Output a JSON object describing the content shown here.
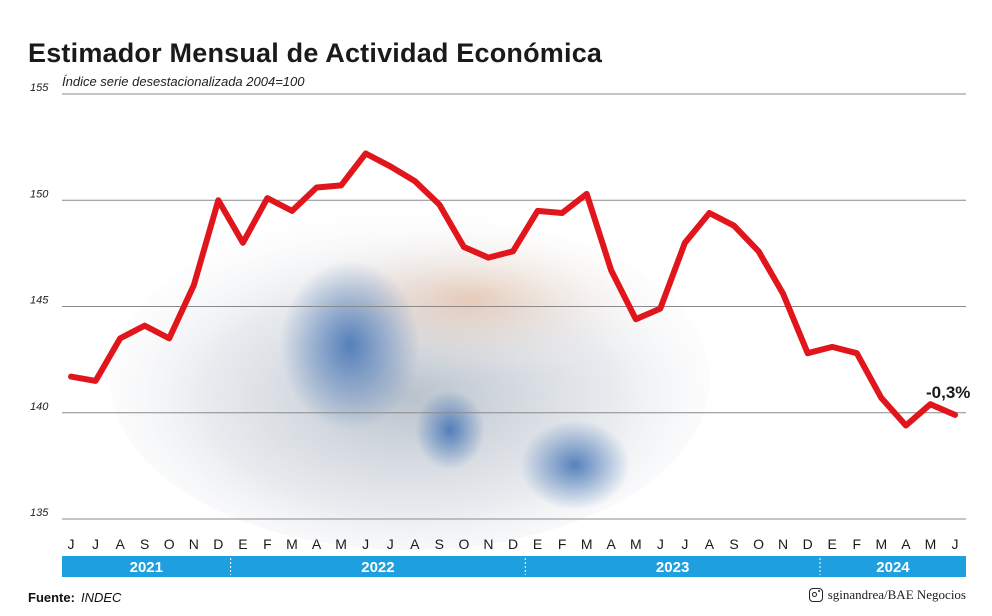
{
  "title": "Estimador Mensual de Actividad Económica",
  "subtitle": "Índice serie desestacionalizada 2004=100",
  "footer": {
    "source_label": "Fuente:",
    "source_value": "INDEC",
    "credit": "sginandrea/BAE Negocios",
    "credit_icon": "instagram-icon"
  },
  "chart_data": {
    "type": "line",
    "title": "Estimador Mensual de Actividad Económica",
    "subtitle": "Índice serie desestacionalizada 2004=100",
    "categories": [
      "J",
      "J",
      "A",
      "S",
      "O",
      "N",
      "D",
      "E",
      "F",
      "M",
      "A",
      "M",
      "J",
      "J",
      "A",
      "S",
      "O",
      "N",
      "D",
      "E",
      "F",
      "M",
      "A",
      "M",
      "J",
      "J",
      "A",
      "S",
      "O",
      "N",
      "D",
      "E",
      "F",
      "M",
      "A",
      "M",
      "J"
    ],
    "years": [
      {
        "label": "2021",
        "start": 0,
        "end": 6
      },
      {
        "label": "2022",
        "start": 7,
        "end": 18
      },
      {
        "label": "2023",
        "start": 19,
        "end": 30
      },
      {
        "label": "2024",
        "start": 31,
        "end": 36
      }
    ],
    "series": [
      {
        "values": [
          141.7,
          141.5,
          143.5,
          144.1,
          143.5,
          146.0,
          150.0,
          148.0,
          150.1,
          149.5,
          150.6,
          150.7,
          152.2,
          151.6,
          150.9,
          149.8,
          147.8,
          147.3,
          147.6,
          149.5,
          149.4,
          150.3,
          146.7,
          144.4,
          144.9,
          148.0,
          149.4,
          148.8,
          147.6,
          145.6,
          142.8,
          143.1,
          142.8,
          140.7,
          139.4,
          140.4,
          139.9
        ],
        "color": "#e0161c"
      }
    ],
    "ylim": [
      135,
      155
    ],
    "yticks": [
      135,
      140,
      145,
      150,
      155
    ],
    "annotation": {
      "text": "-0,3%",
      "index": 36
    },
    "grid": true,
    "legend": "none",
    "band_color": "#1d9fe0"
  }
}
